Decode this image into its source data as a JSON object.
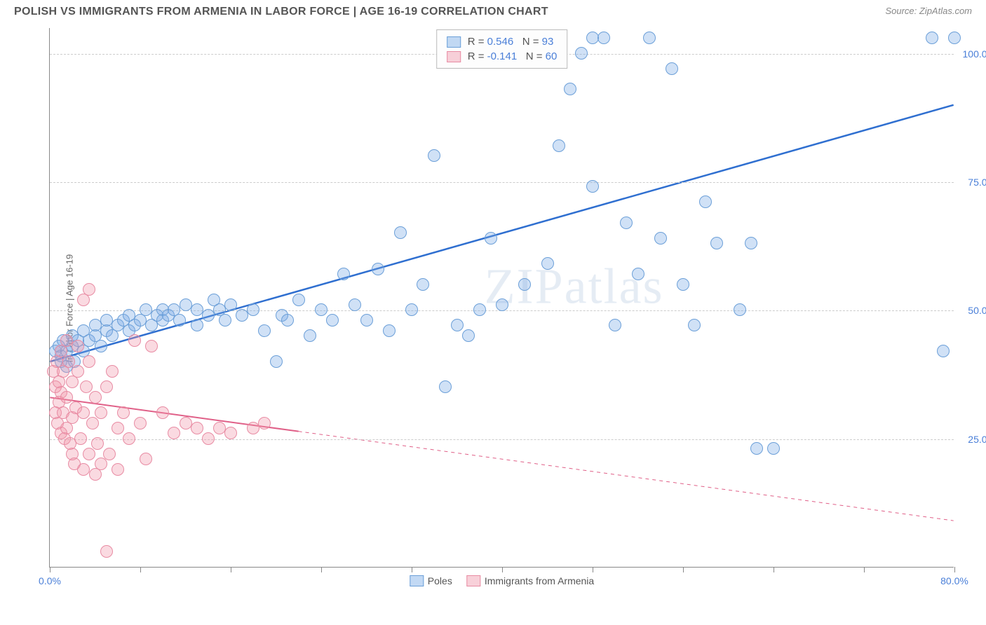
{
  "header": {
    "title": "POLISH VS IMMIGRANTS FROM ARMENIA IN LABOR FORCE | AGE 16-19 CORRELATION CHART",
    "source": "Source: ZipAtlas.com"
  },
  "watermark": "ZIPatlas",
  "chart": {
    "type": "scatter",
    "ylabel": "In Labor Force | Age 16-19",
    "xlim": [
      0,
      80
    ],
    "ylim": [
      0,
      105
    ],
    "x_axis_label_min": "0.0%",
    "x_axis_label_max": "80.0%",
    "y_ticks": [
      {
        "value": 25,
        "label": "25.0%"
      },
      {
        "value": 50,
        "label": "50.0%"
      },
      {
        "value": 75,
        "label": "75.0%"
      },
      {
        "value": 100,
        "label": "100.0%"
      }
    ],
    "x_tick_positions": [
      0,
      8,
      16,
      24,
      32,
      40,
      48,
      56,
      64,
      72,
      80
    ],
    "background_color": "#ffffff",
    "grid_color": "#cccccc",
    "marker_size": 18,
    "series": [
      {
        "name": "Poles",
        "color_fill": "rgba(120,170,230,0.35)",
        "color_stroke": "#6b9fd8",
        "R": "0.546",
        "N": "93",
        "trend": {
          "x1": 0,
          "y1": 40,
          "x2": 80,
          "y2": 90,
          "solid_until_x": 80,
          "color": "#2f6fd0",
          "width": 2.5
        },
        "points": [
          [
            0.5,
            42
          ],
          [
            0.8,
            43
          ],
          [
            1,
            40
          ],
          [
            1,
            41
          ],
          [
            1.2,
            44
          ],
          [
            1.5,
            39
          ],
          [
            1.5,
            42
          ],
          [
            2,
            43
          ],
          [
            2,
            45
          ],
          [
            2.2,
            40
          ],
          [
            2.5,
            44
          ],
          [
            3,
            42
          ],
          [
            3,
            46
          ],
          [
            3.5,
            44
          ],
          [
            4,
            45
          ],
          [
            4,
            47
          ],
          [
            4.5,
            43
          ],
          [
            5,
            46
          ],
          [
            5,
            48
          ],
          [
            5.5,
            45
          ],
          [
            6,
            47
          ],
          [
            6.5,
            48
          ],
          [
            7,
            46
          ],
          [
            7,
            49
          ],
          [
            7.5,
            47
          ],
          [
            8,
            48
          ],
          [
            8.5,
            50
          ],
          [
            9,
            47
          ],
          [
            9.5,
            49
          ],
          [
            10,
            48
          ],
          [
            10,
            50
          ],
          [
            10.5,
            49
          ],
          [
            11,
            50
          ],
          [
            11.5,
            48
          ],
          [
            12,
            51
          ],
          [
            13,
            50
          ],
          [
            13,
            47
          ],
          [
            14,
            49
          ],
          [
            14.5,
            52
          ],
          [
            15,
            50
          ],
          [
            15.5,
            48
          ],
          [
            16,
            51
          ],
          [
            17,
            49
          ],
          [
            18,
            50
          ],
          [
            19,
            46
          ],
          [
            20,
            40
          ],
          [
            20.5,
            49
          ],
          [
            21,
            48
          ],
          [
            22,
            52
          ],
          [
            23,
            45
          ],
          [
            24,
            50
          ],
          [
            25,
            48
          ],
          [
            26,
            57
          ],
          [
            27,
            51
          ],
          [
            28,
            48
          ],
          [
            29,
            58
          ],
          [
            30,
            46
          ],
          [
            31,
            65
          ],
          [
            32,
            50
          ],
          [
            33,
            55
          ],
          [
            34,
            80
          ],
          [
            35,
            35
          ],
          [
            36,
            47
          ],
          [
            37,
            45
          ],
          [
            38,
            50
          ],
          [
            39,
            64
          ],
          [
            40,
            51
          ],
          [
            42,
            55
          ],
          [
            43,
            100
          ],
          [
            44,
            59
          ],
          [
            45,
            82
          ],
          [
            46,
            93
          ],
          [
            47,
            100
          ],
          [
            48,
            103
          ],
          [
            48,
            74
          ],
          [
            49,
            103
          ],
          [
            50,
            47
          ],
          [
            51,
            67
          ],
          [
            52,
            57
          ],
          [
            53,
            103
          ],
          [
            54,
            64
          ],
          [
            55,
            97
          ],
          [
            56,
            55
          ],
          [
            57,
            47
          ],
          [
            58,
            71
          ],
          [
            59,
            63
          ],
          [
            61,
            50
          ],
          [
            62,
            63
          ],
          [
            62.5,
            23
          ],
          [
            64,
            23
          ],
          [
            78,
            103
          ],
          [
            79,
            42
          ],
          [
            80,
            103
          ]
        ]
      },
      {
        "name": "Immigrants from Armenia",
        "color_fill": "rgba(240,150,170,0.35)",
        "color_stroke": "#e88ba3",
        "R": "-0.141",
        "N": "60",
        "trend": {
          "x1": 0,
          "y1": 33,
          "x2": 80,
          "y2": 9,
          "solid_until_x": 22,
          "color": "#e06088",
          "width": 2
        },
        "points": [
          [
            0.3,
            38
          ],
          [
            0.5,
            35
          ],
          [
            0.5,
            30
          ],
          [
            0.6,
            40
          ],
          [
            0.7,
            28
          ],
          [
            0.8,
            36
          ],
          [
            0.8,
            32
          ],
          [
            1,
            34
          ],
          [
            1,
            26
          ],
          [
            1,
            42
          ],
          [
            1.2,
            38
          ],
          [
            1.2,
            30
          ],
          [
            1.3,
            25
          ],
          [
            1.5,
            44
          ],
          [
            1.5,
            33
          ],
          [
            1.5,
            27
          ],
          [
            1.7,
            40
          ],
          [
            1.8,
            24
          ],
          [
            2,
            36
          ],
          [
            2,
            29
          ],
          [
            2,
            22
          ],
          [
            2.2,
            20
          ],
          [
            2.3,
            31
          ],
          [
            2.5,
            38
          ],
          [
            2.5,
            43
          ],
          [
            2.7,
            25
          ],
          [
            3,
            52
          ],
          [
            3,
            30
          ],
          [
            3,
            19
          ],
          [
            3.2,
            35
          ],
          [
            3.5,
            40
          ],
          [
            3.5,
            22
          ],
          [
            3.5,
            54
          ],
          [
            3.8,
            28
          ],
          [
            4,
            33
          ],
          [
            4,
            18
          ],
          [
            4.2,
            24
          ],
          [
            4.5,
            30
          ],
          [
            4.5,
            20
          ],
          [
            5,
            35
          ],
          [
            5,
            3
          ],
          [
            5.3,
            22
          ],
          [
            5.5,
            38
          ],
          [
            6,
            27
          ],
          [
            6,
            19
          ],
          [
            6.5,
            30
          ],
          [
            7,
            25
          ],
          [
            7.5,
            44
          ],
          [
            8,
            28
          ],
          [
            8.5,
            21
          ],
          [
            9,
            43
          ],
          [
            10,
            30
          ],
          [
            11,
            26
          ],
          [
            12,
            28
          ],
          [
            13,
            27
          ],
          [
            14,
            25
          ],
          [
            15,
            27
          ],
          [
            16,
            26
          ],
          [
            18,
            27
          ],
          [
            19,
            28
          ]
        ]
      }
    ],
    "legend_bottom": [
      {
        "label": "Poles",
        "swatch": "blue"
      },
      {
        "label": "Immigrants from Armenia",
        "swatch": "pink"
      }
    ]
  }
}
